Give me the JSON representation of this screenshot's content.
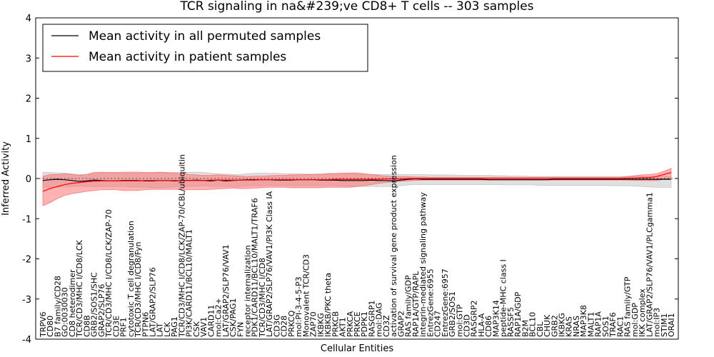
{
  "chart_data": {
    "type": "line",
    "title": "TCR signaling in na&#239;ve CD8+ T cells -- 303 samples",
    "xlabel": "Cellular Entities",
    "ylabel": "Inferred Activity",
    "ylim": [
      -4,
      4
    ],
    "yticks": [
      "-4",
      "-3",
      "-2",
      "-1",
      "0",
      "1",
      "2",
      "3",
      "4"
    ],
    "legend": {
      "position": "top-left",
      "entries": [
        "Mean activity in all permuted samples",
        "Mean activity in patient samples"
      ]
    },
    "colors": {
      "permuted": "#000000",
      "patient": "#ff0000",
      "permuted_band": "#bbbbbb",
      "patient_band": "#ff6666"
    },
    "categories": [
      "TRPV6",
      "CD80",
      "B7 family/CD28",
      "GO:0030030",
      "CD8 heterodimer",
      "TCR/CD3/MHC I/CD8/LCK",
      "CD8B",
      "GRB2/SOS1/SHC",
      "GRAP2/SLP76",
      "TCR/CD3/MHC I/CD8/LCK/ZAP-70",
      "CD3E",
      "PRF1",
      "cytotoxic T cell degranulation",
      "TCR/CD3/MHC I/CD8/Fyn",
      "PTPN6",
      "LAT/GRAP2/SLP76",
      "LAT",
      "LCK",
      "PAG1",
      "TCR/CD3/MHC I/CD8/LCK/ZAP-70/CBL/ubiquitin",
      "PI3K/CARD11/BCL10/MALT1",
      "CSK",
      "VAV1",
      "CARD11",
      "mol:Ca2+",
      "LAT/GRAP2/SLP76/VAV1",
      "CSK/PAG1",
      "FYN",
      "receptor internalization",
      "PDK1/CARD11/BCL10/MALT1/TRAF6",
      "TCR/CD3/MHC I/CD8",
      "LAT/GRAP2/SLP76/VAV1/PI3K Class IA",
      "CD3G",
      "CD28",
      "PRKCQ",
      "mol:PI-3-4-5-P3",
      "Monovalent TCR/CD3",
      "ZAP70",
      "IKBKG",
      "IKBKB/PKC theta",
      "PRKCB",
      "AKT1",
      "PRKCA",
      "PRKCE",
      "PDPK1",
      "RASGRP1",
      "mol:DAG",
      "CD3Z",
      "activation of survival gene product expression",
      "GRAP2",
      "RAS family/GDP",
      "RAP1A/GTP/RAPL",
      "integrin-mediated signaling pathway",
      "EntrezGene:6955",
      "CD247",
      "EntrezGene:6957",
      "GRB2/SOS1",
      "mol:GTP",
      "CD3D",
      "RASGRP2",
      "HLA-A",
      "CD86",
      "MAP3K14",
      "peptide-MHC class I",
      "RASSF5",
      "RAP1A/GDP",
      "B2M",
      "BCL10",
      "CBL",
      "CHUK",
      "GRB2",
      "IKBKG",
      "KRAS",
      "NRAS",
      "MAP3K8",
      "MALT1",
      "RAP1A",
      "SOS1",
      "TRAF6",
      "RAC1",
      "RAS family/GTP",
      "mol:GDP",
      "IKK complex",
      "LAT/GRAP2/SLP76/VAV1/PLCgamma1",
      "mol:IP3",
      "STIM1",
      "ORAI1"
    ],
    "series": [
      {
        "name": "Mean activity in all permuted samples",
        "values": [
          -0.05,
          -0.03,
          -0.02,
          -0.03,
          -0.05,
          -0.07,
          -0.06,
          -0.04,
          -0.05,
          -0.06,
          -0.06,
          -0.05,
          -0.05,
          -0.05,
          -0.06,
          -0.06,
          -0.05,
          -0.05,
          -0.06,
          -0.05,
          -0.05,
          -0.04,
          -0.05,
          -0.06,
          -0.04,
          -0.06,
          -0.05,
          -0.04,
          -0.03,
          -0.03,
          -0.03,
          -0.03,
          -0.04,
          -0.04,
          -0.04,
          -0.03,
          -0.03,
          -0.03,
          -0.04,
          -0.04,
          -0.04,
          -0.05,
          -0.05,
          -0.05,
          -0.05,
          -0.04,
          -0.05,
          -0.05,
          -0.06,
          -0.04,
          -0.02,
          -0.01,
          -0.02,
          -0.02,
          -0.02,
          -0.02,
          -0.02,
          -0.02,
          -0.02,
          -0.02,
          -0.02,
          -0.03,
          -0.03,
          -0.03,
          -0.03,
          -0.03,
          -0.03,
          -0.03,
          -0.03,
          -0.03,
          -0.02,
          -0.02,
          -0.02,
          -0.02,
          -0.02,
          -0.02,
          -0.02,
          -0.02,
          -0.02,
          -0.02,
          -0.02,
          -0.02,
          -0.02,
          -0.02,
          -0.02,
          -0.02,
          -0.02
        ],
        "band_upper": [
          0.15,
          0.15,
          0.14,
          0.13,
          0.12,
          0.1,
          0.1,
          0.12,
          0.13,
          0.13,
          0.13,
          0.13,
          0.13,
          0.13,
          0.14,
          0.14,
          0.14,
          0.14,
          0.15,
          0.15,
          0.15,
          0.16,
          0.15,
          0.13,
          0.12,
          0.11,
          0.1,
          0.1,
          0.12,
          0.13,
          0.13,
          0.13,
          0.13,
          0.12,
          0.12,
          0.12,
          0.11,
          0.11,
          0.12,
          0.13,
          0.13,
          0.13,
          0.12,
          0.11,
          0.11,
          0.1,
          0.1,
          0.1,
          0.1,
          0.1,
          0.1,
          0.1,
          0.1,
          0.09,
          0.09,
          0.09,
          0.09,
          0.08,
          0.08,
          0.08,
          0.08,
          0.08,
          0.07,
          0.07,
          0.06,
          0.06,
          0.06,
          0.05,
          0.05,
          0.05,
          0.05,
          0.05,
          0.05,
          0.05,
          0.05,
          0.05,
          0.05,
          0.05,
          0.05,
          0.05,
          0.05,
          0.05,
          0.05,
          0.05,
          0.05,
          0.05,
          0.05
        ],
        "band_lower": [
          -0.22,
          -0.22,
          -0.21,
          -0.2,
          -0.2,
          -0.19,
          -0.2,
          -0.2,
          -0.2,
          -0.2,
          -0.2,
          -0.2,
          -0.21,
          -0.21,
          -0.22,
          -0.23,
          -0.23,
          -0.22,
          -0.21,
          -0.21,
          -0.2,
          -0.19,
          -0.18,
          -0.2,
          -0.2,
          -0.2,
          -0.2,
          -0.2,
          -0.18,
          -0.18,
          -0.18,
          -0.18,
          -0.18,
          -0.18,
          -0.18,
          -0.18,
          -0.18,
          -0.18,
          -0.18,
          -0.18,
          -0.18,
          -0.19,
          -0.19,
          -0.19,
          -0.2,
          -0.2,
          -0.2,
          -0.2,
          -0.2,
          -0.18,
          -0.16,
          -0.15,
          -0.15,
          -0.15,
          -0.15,
          -0.15,
          -0.15,
          -0.15,
          -0.15,
          -0.15,
          -0.15,
          -0.15,
          -0.15,
          -0.16,
          -0.16,
          -0.16,
          -0.16,
          -0.16,
          -0.17,
          -0.17,
          -0.17,
          -0.17,
          -0.17,
          -0.17,
          -0.17,
          -0.17,
          -0.17,
          -0.17,
          -0.18,
          -0.18,
          -0.18,
          -0.19,
          -0.2,
          -0.21,
          -0.22,
          -0.22,
          -0.22
        ]
      },
      {
        "name": "Mean activity in patient samples",
        "values": [
          -0.32,
          -0.25,
          -0.2,
          -0.15,
          -0.12,
          -0.1,
          -0.08,
          -0.07,
          -0.06,
          -0.06,
          -0.06,
          -0.06,
          -0.06,
          -0.06,
          -0.05,
          -0.05,
          -0.05,
          -0.05,
          -0.05,
          -0.05,
          -0.05,
          -0.05,
          -0.05,
          -0.04,
          -0.04,
          -0.04,
          -0.04,
          -0.04,
          -0.04,
          -0.04,
          -0.03,
          -0.03,
          -0.03,
          -0.03,
          -0.03,
          -0.03,
          -0.03,
          -0.03,
          -0.03,
          -0.03,
          -0.02,
          -0.02,
          -0.02,
          -0.02,
          -0.02,
          -0.02,
          -0.02,
          -0.01,
          -0.01,
          -0.01,
          0.0,
          0.0,
          0.0,
          0.0,
          0.0,
          0.0,
          0.0,
          0.0,
          0.0,
          0.0,
          0.0,
          0.0,
          0.0,
          0.0,
          0.0,
          0.0,
          0.0,
          0.0,
          0.0,
          0.0,
          0.0,
          0.0,
          0.0,
          0.0,
          0.0,
          0.0,
          0.0,
          0.0,
          0.0,
          0.0,
          0.01,
          0.01,
          0.02,
          0.02,
          0.05,
          0.1,
          0.15
        ],
        "band_upper": [
          0.05,
          0.1,
          0.1,
          0.12,
          0.1,
          0.08,
          0.1,
          0.15,
          0.16,
          0.15,
          0.15,
          0.16,
          0.16,
          0.16,
          0.15,
          0.15,
          0.16,
          0.15,
          0.14,
          0.12,
          0.1,
          0.09,
          0.08,
          0.08,
          0.09,
          0.08,
          0.07,
          0.06,
          0.05,
          0.06,
          0.06,
          0.07,
          0.08,
          0.08,
          0.09,
          0.09,
          0.1,
          0.1,
          0.1,
          0.11,
          0.12,
          0.13,
          0.14,
          0.14,
          0.12,
          0.1,
          0.08,
          0.06,
          0.05,
          0.05,
          0.05,
          0.04,
          0.04,
          0.03,
          0.03,
          0.03,
          0.03,
          0.03,
          0.03,
          0.03,
          0.03,
          0.03,
          0.03,
          0.03,
          0.03,
          0.03,
          0.03,
          0.03,
          0.03,
          0.03,
          0.03,
          0.03,
          0.03,
          0.03,
          0.03,
          0.03,
          0.03,
          0.03,
          0.03,
          0.03,
          0.05,
          0.07,
          0.09,
          0.1,
          0.12,
          0.18,
          0.25
        ],
        "band_lower": [
          -0.68,
          -0.6,
          -0.5,
          -0.42,
          -0.38,
          -0.35,
          -0.32,
          -0.3,
          -0.28,
          -0.28,
          -0.28,
          -0.3,
          -0.3,
          -0.3,
          -0.28,
          -0.27,
          -0.27,
          -0.27,
          -0.27,
          -0.28,
          -0.28,
          -0.28,
          -0.28,
          -0.27,
          -0.26,
          -0.25,
          -0.24,
          -0.25,
          -0.25,
          -0.24,
          -0.23,
          -0.22,
          -0.22,
          -0.22,
          -0.23,
          -0.23,
          -0.23,
          -0.23,
          -0.23,
          -0.22,
          -0.22,
          -0.22,
          -0.22,
          -0.2,
          -0.18,
          -0.15,
          -0.12,
          -0.1,
          -0.08,
          -0.07,
          -0.06,
          -0.05,
          -0.04,
          -0.04,
          -0.04,
          -0.04,
          -0.04,
          -0.04,
          -0.04,
          -0.04,
          -0.04,
          -0.04,
          -0.04,
          -0.04,
          -0.04,
          -0.04,
          -0.04,
          -0.04,
          -0.04,
          -0.04,
          -0.04,
          -0.04,
          -0.04,
          -0.04,
          -0.04,
          -0.04,
          -0.04,
          -0.04,
          -0.04,
          -0.04,
          -0.04,
          -0.05,
          -0.05,
          -0.05,
          -0.05,
          -0.02,
          0.02
        ]
      }
    ]
  }
}
